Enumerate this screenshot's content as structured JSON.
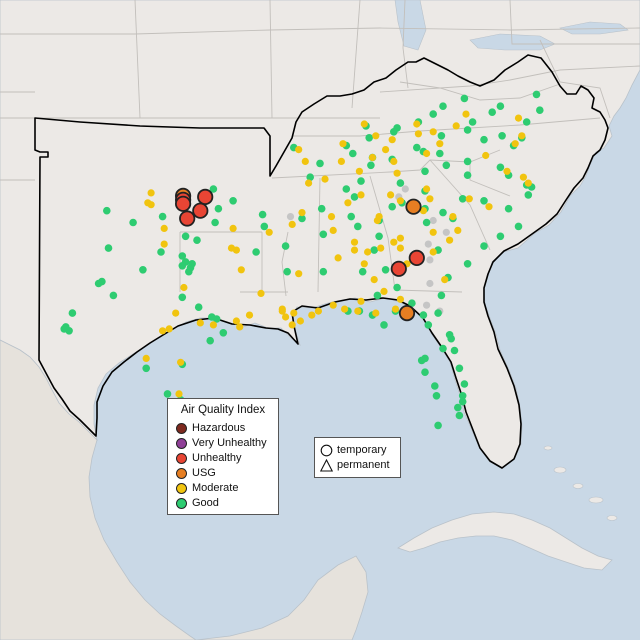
{
  "colors": {
    "ocean": "#c9d8e6",
    "land": "#ece9e6",
    "land_mexico": "#e6e2dc",
    "border_line": "#c2bfbb",
    "region_outline": "#000000",
    "coast": "#b9c2ca"
  },
  "legend": {
    "title": "Air Quality Index",
    "categories": [
      {
        "label": "Hazardous",
        "color": "#7e2a1f"
      },
      {
        "label": "Very Unhealthy",
        "color": "#8f3f97"
      },
      {
        "label": "Unhealthy",
        "color": "#e84534"
      },
      {
        "label": "USG",
        "color": "#e67e22"
      },
      {
        "label": "Moderate",
        "color": "#f1c40f"
      },
      {
        "label": "Good",
        "color": "#2ecc71"
      }
    ]
  },
  "site_legend": {
    "items": [
      {
        "label": "temporary",
        "icon": "circle-icon"
      },
      {
        "label": "permanent",
        "icon": "triangle-icon"
      }
    ]
  },
  "no_data_color": "#c5c5c5",
  "monitors": {
    "elevated": [
      {
        "lat": 36.25,
        "lon": -97.25,
        "aqi": "USG"
      },
      {
        "lat": 36.05,
        "lon": -97.25,
        "aqi": "Unhealthy"
      },
      {
        "lat": 35.85,
        "lon": -97.25,
        "aqi": "Unhealthy"
      },
      {
        "lat": 36.2,
        "lon": -95.9,
        "aqi": "Unhealthy"
      },
      {
        "lat": 35.5,
        "lon": -96.2,
        "aqi": "Unhealthy"
      },
      {
        "lat": 35.1,
        "lon": -97.0,
        "aqi": "Unhealthy"
      },
      {
        "lat": 35.7,
        "lon": -83.2,
        "aqi": "USG"
      },
      {
        "lat": 33.1,
        "lon": -83.0,
        "aqi": "Unhealthy"
      },
      {
        "lat": 32.55,
        "lon": -84.1,
        "aqi": "Unhealthy"
      },
      {
        "lat": 30.3,
        "lon": -83.6,
        "aqi": "USG"
      }
    ],
    "moderate": [
      [
        36.4,
        -99.2
      ],
      [
        35.9,
        -99.4
      ],
      [
        35.8,
        -99.2
      ],
      [
        34.6,
        -94.2
      ],
      [
        33.6,
        -94.3
      ],
      [
        33.5,
        -94.0
      ],
      [
        34.4,
        -92.0
      ],
      [
        35.4,
        -90.0
      ],
      [
        34.8,
        -90.6
      ],
      [
        35.9,
        -87.2
      ],
      [
        36.3,
        -86.4
      ],
      [
        35.2,
        -88.2
      ],
      [
        34.5,
        -88.1
      ],
      [
        33.1,
        -87.8
      ],
      [
        32.8,
        -86.2
      ],
      [
        33.4,
        -86.0
      ],
      [
        33.9,
        -86.8
      ],
      [
        33.5,
        -86.8
      ],
      [
        33.6,
        -85.2
      ],
      [
        32.0,
        -85.6
      ],
      [
        31.4,
        -85.0
      ],
      [
        30.7,
        -88.1
      ],
      [
        30.5,
        -87.4
      ],
      [
        30.4,
        -86.6
      ],
      [
        30.3,
        -85.5
      ],
      [
        30.9,
        -86.4
      ],
      [
        30.5,
        -84.3
      ],
      [
        31.0,
        -84.0
      ],
      [
        33.9,
        -84.4
      ],
      [
        34.1,
        -84.0
      ],
      [
        33.6,
        -84.0
      ],
      [
        32.8,
        -83.6
      ],
      [
        33.4,
        -82.0
      ],
      [
        32.0,
        -81.3
      ],
      [
        34.0,
        -81.0
      ],
      [
        34.4,
        -82.0
      ],
      [
        34.5,
        -80.5
      ],
      [
        35.2,
        -80.8
      ],
      [
        35.7,
        -78.6
      ],
      [
        36.1,
        -79.8
      ],
      [
        35.5,
        -82.6
      ],
      [
        36.6,
        -82.4
      ],
      [
        36.1,
        -82.2
      ],
      [
        35.2,
        -85.3
      ],
      [
        35.0,
        -85.4
      ],
      [
        36.3,
        -84.6
      ],
      [
        36.0,
        -84.0
      ],
      [
        37.5,
        -86.5
      ],
      [
        38.2,
        -85.7
      ],
      [
        38.0,
        -84.4
      ],
      [
        37.4,
        -84.2
      ],
      [
        38.6,
        -84.9
      ],
      [
        39.1,
        -84.5
      ],
      [
        39.3,
        -85.5
      ],
      [
        39.9,
        -86.2
      ],
      [
        38.9,
        -87.5
      ],
      [
        38.0,
        -87.6
      ],
      [
        38.6,
        -90.2
      ],
      [
        38.0,
        -89.8
      ],
      [
        37.1,
        -88.6
      ],
      [
        36.9,
        -89.6
      ],
      [
        39.5,
        -82.0
      ],
      [
        39.4,
        -82.9
      ],
      [
        39.9,
        -83.0
      ],
      [
        38.4,
        -82.4
      ],
      [
        38.9,
        -81.6
      ],
      [
        39.8,
        -80.6
      ],
      [
        40.4,
        -80.0
      ],
      [
        40.2,
        -76.8
      ],
      [
        39.3,
        -76.6
      ],
      [
        38.9,
        -77.0
      ],
      [
        38.3,
        -78.8
      ],
      [
        37.5,
        -77.5
      ],
      [
        37.2,
        -76.5
      ],
      [
        36.9,
        -76.2
      ],
      [
        31.6,
        -97.2
      ],
      [
        30.3,
        -97.7
      ],
      [
        29.7,
        -95.4
      ],
      [
        29.9,
        -94.0
      ],
      [
        30.2,
        -93.2
      ],
      [
        30.4,
        -91.2
      ],
      [
        29.9,
        -90.1
      ],
      [
        30.3,
        -90.5
      ],
      [
        30.2,
        -89.4
      ],
      [
        30.4,
        -89.0
      ],
      [
        32.5,
        -93.7
      ],
      [
        32.3,
        -90.2
      ],
      [
        31.3,
        -92.5
      ],
      [
        28.0,
        -99.5
      ],
      [
        27.8,
        -97.4
      ],
      [
        26.2,
        -97.5
      ],
      [
        29.4,
        -98.5
      ],
      [
        29.5,
        -98.1
      ],
      [
        29.8,
        -96.2
      ],
      [
        29.6,
        -93.8
      ],
      [
        30.1,
        -91.0
      ],
      [
        29.7,
        -90.6
      ],
      [
        30.5,
        -91.2
      ],
      [
        33.8,
        -98.4
      ],
      [
        34.6,
        -98.4
      ]
    ],
    "good": [
      [
        35.5,
        -101.9
      ],
      [
        34.9,
        -100.3
      ],
      [
        33.6,
        -101.8
      ],
      [
        32.5,
        -99.7
      ],
      [
        31.9,
        -102.2
      ],
      [
        31.8,
        -102.4
      ],
      [
        31.2,
        -101.5
      ],
      [
        30.3,
        -104.0
      ],
      [
        29.6,
        -104.4
      ],
      [
        29.4,
        -104.2
      ],
      [
        29.5,
        -104.5
      ],
      [
        33.2,
        -97.3
      ],
      [
        32.9,
        -97.1
      ],
      [
        32.6,
        -96.8
      ],
      [
        32.8,
        -96.7
      ],
      [
        32.7,
        -97.3
      ],
      [
        32.4,
        -96.9
      ],
      [
        31.1,
        -97.3
      ],
      [
        30.6,
        -96.3
      ],
      [
        30.1,
        -95.5
      ],
      [
        30.0,
        -95.2
      ],
      [
        29.3,
        -94.8
      ],
      [
        28.9,
        -95.6
      ],
      [
        27.7,
        -97.3
      ],
      [
        27.5,
        -99.5
      ],
      [
        25.9,
        -97.4
      ],
      [
        26.2,
        -98.2
      ],
      [
        34.2,
        -97.1
      ],
      [
        35.2,
        -98.5
      ],
      [
        35.9,
        -96.0
      ],
      [
        36.6,
        -95.4
      ],
      [
        35.6,
        -95.1
      ],
      [
        34.9,
        -95.3
      ],
      [
        33.4,
        -92.8
      ],
      [
        35.3,
        -92.4
      ],
      [
        36.0,
        -94.2
      ],
      [
        34.7,
        -92.3
      ],
      [
        33.7,
        -91.0
      ],
      [
        32.4,
        -90.9
      ],
      [
        35.1,
        -90.0
      ],
      [
        35.6,
        -88.8
      ],
      [
        34.3,
        -88.7
      ],
      [
        32.4,
        -88.7
      ],
      [
        34.7,
        -86.6
      ],
      [
        34.2,
        -85.3
      ],
      [
        33.5,
        -85.6
      ],
      [
        32.4,
        -86.3
      ],
      [
        31.2,
        -85.4
      ],
      [
        30.4,
        -87.2
      ],
      [
        30.4,
        -86.5
      ],
      [
        30.2,
        -85.7
      ],
      [
        29.7,
        -85.0
      ],
      [
        30.4,
        -84.3
      ],
      [
        30.2,
        -82.6
      ],
      [
        29.7,
        -82.3
      ],
      [
        30.3,
        -81.7
      ],
      [
        29.2,
        -81.0
      ],
      [
        28.5,
        -81.4
      ],
      [
        28.0,
        -82.5
      ],
      [
        27.9,
        -82.7
      ],
      [
        27.3,
        -82.5
      ],
      [
        26.6,
        -81.9
      ],
      [
        26.1,
        -81.8
      ],
      [
        25.8,
        -80.2
      ],
      [
        26.1,
        -80.2
      ],
      [
        26.7,
        -80.1
      ],
      [
        27.5,
        -80.4
      ],
      [
        28.4,
        -80.7
      ],
      [
        29.0,
        -80.9
      ],
      [
        25.5,
        -80.5
      ],
      [
        24.6,
        -81.7
      ],
      [
        25.1,
        -80.4
      ],
      [
        30.8,
        -83.3
      ],
      [
        31.6,
        -84.2
      ],
      [
        32.5,
        -84.9
      ],
      [
        32.1,
        -81.1
      ],
      [
        31.2,
        -81.5
      ],
      [
        33.5,
        -81.7
      ],
      [
        32.8,
        -79.9
      ],
      [
        33.7,
        -78.9
      ],
      [
        34.2,
        -77.9
      ],
      [
        34.9,
        -82.4
      ],
      [
        35.1,
        -80.8
      ],
      [
        35.6,
        -77.4
      ],
      [
        36.0,
        -78.9
      ],
      [
        36.1,
        -80.2
      ],
      [
        35.6,
        -82.5
      ],
      [
        35.4,
        -81.4
      ],
      [
        34.7,
        -76.8
      ],
      [
        35.9,
        -83.9
      ],
      [
        35.0,
        -85.3
      ],
      [
        36.2,
        -86.8
      ],
      [
        35.2,
        -87.0
      ],
      [
        35.7,
        -84.5
      ],
      [
        36.5,
        -82.5
      ],
      [
        36.6,
        -87.3
      ],
      [
        37.0,
        -86.4
      ],
      [
        37.8,
        -85.8
      ],
      [
        38.2,
        -85.7
      ],
      [
        38.1,
        -84.5
      ],
      [
        37.5,
        -82.5
      ],
      [
        36.9,
        -84.0
      ],
      [
        38.5,
        -82.6
      ],
      [
        37.8,
        -81.2
      ],
      [
        38.4,
        -81.6
      ],
      [
        39.3,
        -81.5
      ],
      [
        39.1,
        -78.9
      ],
      [
        38.0,
        -79.9
      ],
      [
        37.3,
        -79.9
      ],
      [
        37.3,
        -77.4
      ],
      [
        36.8,
        -76.3
      ],
      [
        38.8,
        -77.1
      ],
      [
        39.2,
        -76.6
      ],
      [
        39.3,
        -77.8
      ],
      [
        40.0,
        -76.3
      ],
      [
        40.6,
        -75.5
      ],
      [
        41.4,
        -75.7
      ],
      [
        40.8,
        -77.9
      ],
      [
        40.5,
        -78.4
      ],
      [
        41.2,
        -80.1
      ],
      [
        40.0,
        -79.6
      ],
      [
        39.6,
        -79.9
      ],
      [
        38.8,
        -87.3
      ],
      [
        39.8,
        -86.1
      ],
      [
        39.2,
        -85.9
      ],
      [
        38.4,
        -86.9
      ],
      [
        37.9,
        -88.9
      ],
      [
        38.7,
        -90.5
      ],
      [
        37.2,
        -89.5
      ],
      [
        39.7,
        -84.2
      ],
      [
        40.0,
        -82.9
      ],
      [
        39.5,
        -84.4
      ],
      [
        38.7,
        -83.0
      ],
      [
        40.4,
        -82.0
      ],
      [
        40.8,
        -81.4
      ],
      [
        36.3,
        -76.2
      ],
      [
        36.7,
        -76.0
      ],
      [
        37.7,
        -77.9
      ],
      [
        33.4,
        -98.6
      ],
      [
        34.0,
        -96.4
      ]
    ],
    "nodata": [
      [
        36.2,
        -84.1
      ],
      [
        36.6,
        -83.7
      ],
      [
        35.0,
        -82.0
      ],
      [
        33.8,
        -82.3
      ],
      [
        34.4,
        -81.2
      ],
      [
        33.0,
        -82.2
      ],
      [
        31.8,
        -82.2
      ],
      [
        30.7,
        -82.4
      ],
      [
        30.4,
        -81.6
      ],
      [
        35.2,
        -90.7
      ],
      [
        35.7,
        -83.2
      ]
    ]
  }
}
